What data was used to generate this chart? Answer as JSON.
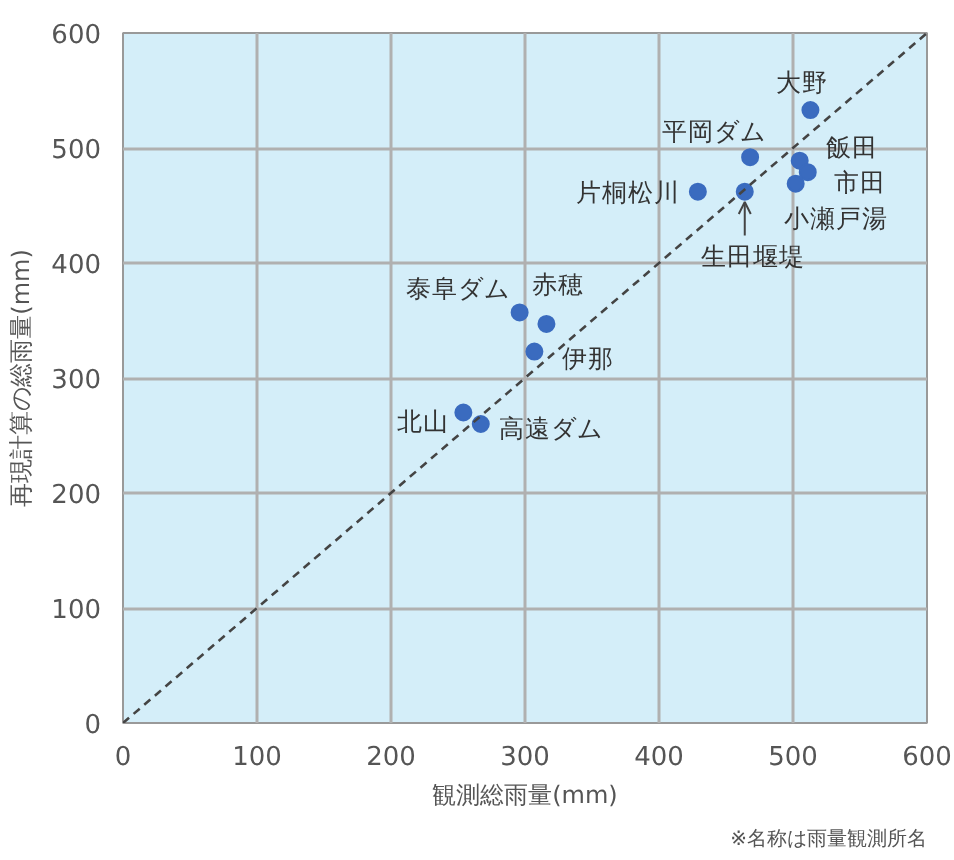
{
  "chart_data": {
    "type": "scatter",
    "xlabel": "観測総雨量(mm)",
    "ylabel": "再現計算の総雨量(mm)",
    "xlim": [
      0,
      600
    ],
    "ylim": [
      0,
      600
    ],
    "xticks": [
      0,
      100,
      200,
      300,
      400,
      500,
      600
    ],
    "yticks": [
      0,
      100,
      200,
      300,
      400,
      500,
      600
    ],
    "grid": true,
    "marker": "circle",
    "series": [
      {
        "color": "#3a6bbf",
        "x": [
          513,
          468,
          505,
          511,
          502,
          464,
          429,
          296,
          316,
          307,
          254,
          267
        ],
        "values": [
          533,
          492,
          489,
          479,
          469,
          462,
          462,
          357,
          347,
          323,
          270,
          260
        ]
      },
      {
        "type": "line",
        "color": "#444444",
        "line_style": "dashed",
        "marker": "none",
        "x": [
          0,
          600
        ],
        "values": [
          0,
          600
        ]
      }
    ],
    "annotations": [
      {
        "text": "大野",
        "x": 513,
        "y": 533
      },
      {
        "text": "平岡ダム",
        "x": 468,
        "y": 492
      },
      {
        "text": "飯田",
        "x": 505,
        "y": 489
      },
      {
        "text": "市田",
        "x": 511,
        "y": 479
      },
      {
        "text": "小瀬戸湯",
        "x": 502,
        "y": 469
      },
      {
        "text": "生田堰堤",
        "x": 464,
        "y": 462
      },
      {
        "text": "片桐松川",
        "x": 429,
        "y": 462
      },
      {
        "text": "泰阜ダム",
        "x": 296,
        "y": 357
      },
      {
        "text": "赤穂",
        "x": 316,
        "y": 347
      },
      {
        "text": "伊那",
        "x": 307,
        "y": 323
      },
      {
        "text": "北山",
        "x": 254,
        "y": 270
      },
      {
        "text": "高遠ダム",
        "x": 267,
        "y": 260
      },
      "※名称は雨量観測所名"
    ]
  }
}
